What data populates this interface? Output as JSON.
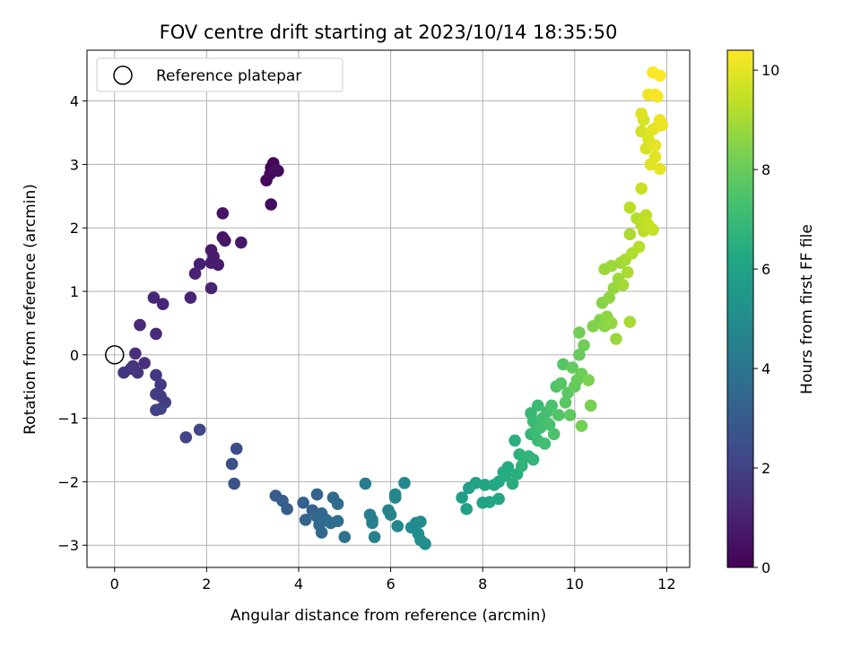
{
  "chart_data": {
    "type": "scatter",
    "title": "FOV centre drift starting at 2023/10/14 18:35:50",
    "xlabel": "Angular distance from reference (arcmin)",
    "ylabel": "Rotation from reference (arcmin)",
    "xlim": [
      -0.6,
      12.5
    ],
    "ylim": [
      -3.35,
      4.8
    ],
    "xticks": [
      0,
      2,
      4,
      6,
      8,
      10,
      12
    ],
    "yticks": [
      -3,
      -2,
      -1,
      0,
      1,
      2,
      3,
      4
    ],
    "grid": true,
    "legend": {
      "placement": "top-left",
      "label": "Reference platepar"
    },
    "reference_point": {
      "x": 0,
      "y": 0
    },
    "colorbar": {
      "label": "Hours from first FF file",
      "colormap": "viridis",
      "range": [
        0,
        10.4
      ],
      "ticks": [
        0,
        2,
        4,
        6,
        8,
        10
      ]
    },
    "points": [
      {
        "x": 3.4,
        "y": 2.95,
        "t": 0.05
      },
      {
        "x": 3.45,
        "y": 3.02,
        "t": 0.1
      },
      {
        "x": 3.55,
        "y": 2.9,
        "t": 0.15
      },
      {
        "x": 3.3,
        "y": 2.75,
        "t": 0.2
      },
      {
        "x": 3.38,
        "y": 2.85,
        "t": 0.25
      },
      {
        "x": 3.4,
        "y": 2.37,
        "t": 0.3
      },
      {
        "x": 3.5,
        "y": 2.92,
        "t": 0.35
      },
      {
        "x": 2.35,
        "y": 2.23,
        "t": 0.5
      },
      {
        "x": 2.35,
        "y": 1.85,
        "t": 0.55
      },
      {
        "x": 2.4,
        "y": 1.8,
        "t": 0.6
      },
      {
        "x": 2.75,
        "y": 1.77,
        "t": 0.65
      },
      {
        "x": 2.1,
        "y": 1.65,
        "t": 0.7
      },
      {
        "x": 2.15,
        "y": 1.55,
        "t": 0.75
      },
      {
        "x": 2.25,
        "y": 1.42,
        "t": 0.8
      },
      {
        "x": 2.1,
        "y": 1.45,
        "t": 0.85
      },
      {
        "x": 1.85,
        "y": 1.43,
        "t": 0.9
      },
      {
        "x": 1.75,
        "y": 1.28,
        "t": 0.95
      },
      {
        "x": 2.1,
        "y": 1.05,
        "t": 1.0
      },
      {
        "x": 1.65,
        "y": 0.9,
        "t": 1.05
      },
      {
        "x": 0.85,
        "y": 0.9,
        "t": 1.1
      },
      {
        "x": 1.05,
        "y": 0.8,
        "t": 1.15
      },
      {
        "x": 0.55,
        "y": 0.47,
        "t": 1.2
      },
      {
        "x": 0.9,
        "y": 0.33,
        "t": 1.25
      },
      {
        "x": 0.45,
        "y": 0.02,
        "t": 1.4
      },
      {
        "x": 0.65,
        "y": -0.13,
        "t": 1.45
      },
      {
        "x": 0.4,
        "y": -0.18,
        "t": 1.5
      },
      {
        "x": 0.5,
        "y": -0.28,
        "t": 1.55
      },
      {
        "x": 0.2,
        "y": -0.28,
        "t": 1.6
      },
      {
        "x": 0.35,
        "y": -0.22,
        "t": 1.65
      },
      {
        "x": 0.9,
        "y": -0.32,
        "t": 1.7
      },
      {
        "x": 1.0,
        "y": -0.47,
        "t": 1.75
      },
      {
        "x": 0.9,
        "y": -0.62,
        "t": 1.8
      },
      {
        "x": 1.0,
        "y": -0.65,
        "t": 1.85
      },
      {
        "x": 1.1,
        "y": -0.75,
        "t": 1.9
      },
      {
        "x": 0.9,
        "y": -0.87,
        "t": 1.95
      },
      {
        "x": 1.0,
        "y": -0.85,
        "t": 2.0
      },
      {
        "x": 1.55,
        "y": -1.3,
        "t": 2.1
      },
      {
        "x": 1.85,
        "y": -1.18,
        "t": 2.15
      },
      {
        "x": 2.65,
        "y": -1.48,
        "t": 2.4
      },
      {
        "x": 2.55,
        "y": -1.72,
        "t": 2.5
      },
      {
        "x": 2.6,
        "y": -2.03,
        "t": 2.6
      },
      {
        "x": 3.5,
        "y": -2.22,
        "t": 3.0
      },
      {
        "x": 3.65,
        "y": -2.3,
        "t": 3.05
      },
      {
        "x": 3.75,
        "y": -2.43,
        "t": 3.1
      },
      {
        "x": 4.1,
        "y": -2.33,
        "t": 3.2
      },
      {
        "x": 4.4,
        "y": -2.2,
        "t": 3.25
      },
      {
        "x": 4.3,
        "y": -2.45,
        "t": 3.3
      },
      {
        "x": 4.15,
        "y": -2.6,
        "t": 3.35
      },
      {
        "x": 4.4,
        "y": -2.55,
        "t": 3.4
      },
      {
        "x": 4.5,
        "y": -2.5,
        "t": 3.45
      },
      {
        "x": 4.45,
        "y": -2.68,
        "t": 3.5
      },
      {
        "x": 4.5,
        "y": -2.8,
        "t": 3.55
      },
      {
        "x": 4.6,
        "y": -2.6,
        "t": 3.6
      },
      {
        "x": 4.75,
        "y": -2.25,
        "t": 3.65
      },
      {
        "x": 4.85,
        "y": -2.35,
        "t": 3.7
      },
      {
        "x": 4.7,
        "y": -2.65,
        "t": 3.75
      },
      {
        "x": 4.85,
        "y": -2.62,
        "t": 3.8
      },
      {
        "x": 5.0,
        "y": -2.87,
        "t": 3.85
      },
      {
        "x": 5.45,
        "y": -2.03,
        "t": 4.3
      },
      {
        "x": 5.55,
        "y": -2.52,
        "t": 4.4
      },
      {
        "x": 5.6,
        "y": -2.6,
        "t": 4.45
      },
      {
        "x": 5.6,
        "y": -2.65,
        "t": 4.5
      },
      {
        "x": 5.65,
        "y": -2.87,
        "t": 4.55
      },
      {
        "x": 5.95,
        "y": -2.45,
        "t": 4.6
      },
      {
        "x": 6.0,
        "y": -2.52,
        "t": 4.65
      },
      {
        "x": 6.1,
        "y": -2.25,
        "t": 4.7
      },
      {
        "x": 6.1,
        "y": -2.2,
        "t": 4.75
      },
      {
        "x": 6.15,
        "y": -2.7,
        "t": 4.8
      },
      {
        "x": 6.3,
        "y": -2.02,
        "t": 4.85
      },
      {
        "x": 6.45,
        "y": -2.72,
        "t": 4.9
      },
      {
        "x": 6.55,
        "y": -2.65,
        "t": 4.95
      },
      {
        "x": 6.6,
        "y": -2.82,
        "t": 5.0
      },
      {
        "x": 6.65,
        "y": -2.63,
        "t": 5.05
      },
      {
        "x": 6.65,
        "y": -2.92,
        "t": 5.1
      },
      {
        "x": 6.75,
        "y": -2.98,
        "t": 5.15
      },
      {
        "x": 7.55,
        "y": -2.25,
        "t": 5.8
      },
      {
        "x": 7.7,
        "y": -2.1,
        "t": 5.85
      },
      {
        "x": 7.65,
        "y": -2.43,
        "t": 5.9
      },
      {
        "x": 7.85,
        "y": -2.02,
        "t": 5.95
      },
      {
        "x": 8.0,
        "y": -2.33,
        "t": 6.0
      },
      {
        "x": 8.05,
        "y": -2.05,
        "t": 6.05
      },
      {
        "x": 8.15,
        "y": -2.32,
        "t": 6.1
      },
      {
        "x": 8.25,
        "y": -2.05,
        "t": 6.15
      },
      {
        "x": 8.35,
        "y": -2.27,
        "t": 6.2
      },
      {
        "x": 8.35,
        "y": -2.0,
        "t": 6.25
      },
      {
        "x": 8.45,
        "y": -1.85,
        "t": 6.3
      },
      {
        "x": 8.55,
        "y": -1.77,
        "t": 6.35
      },
      {
        "x": 8.5,
        "y": -1.9,
        "t": 6.4
      },
      {
        "x": 8.65,
        "y": -2.03,
        "t": 6.45
      },
      {
        "x": 8.75,
        "y": -1.88,
        "t": 6.5
      },
      {
        "x": 8.7,
        "y": -1.35,
        "t": 6.55
      },
      {
        "x": 8.8,
        "y": -1.57,
        "t": 6.6
      },
      {
        "x": 8.9,
        "y": -1.63,
        "t": 6.65
      },
      {
        "x": 8.85,
        "y": -1.75,
        "t": 6.7
      },
      {
        "x": 9.0,
        "y": -1.6,
        "t": 6.75
      },
      {
        "x": 9.1,
        "y": -1.65,
        "t": 6.8
      },
      {
        "x": 9.05,
        "y": -1.25,
        "t": 6.85
      },
      {
        "x": 9.05,
        "y": -0.92,
        "t": 6.9
      },
      {
        "x": 9.1,
        "y": -1.05,
        "t": 6.95
      },
      {
        "x": 9.15,
        "y": -1.2,
        "t": 7.0
      },
      {
        "x": 9.2,
        "y": -0.8,
        "t": 7.05
      },
      {
        "x": 9.2,
        "y": -1.35,
        "t": 7.1
      },
      {
        "x": 9.25,
        "y": -1.15,
        "t": 7.15
      },
      {
        "x": 9.3,
        "y": -1.0,
        "t": 7.2
      },
      {
        "x": 9.35,
        "y": -1.4,
        "t": 7.25
      },
      {
        "x": 9.4,
        "y": -0.9,
        "t": 7.3
      },
      {
        "x": 9.45,
        "y": -1.1,
        "t": 7.35
      },
      {
        "x": 9.5,
        "y": -0.8,
        "t": 7.4
      },
      {
        "x": 9.55,
        "y": -1.25,
        "t": 7.45
      },
      {
        "x": 9.6,
        "y": -0.5,
        "t": 7.5
      },
      {
        "x": 9.65,
        "y": -0.95,
        "t": 7.55
      },
      {
        "x": 9.7,
        "y": -0.45,
        "t": 7.6
      },
      {
        "x": 9.75,
        "y": -0.15,
        "t": 7.65
      },
      {
        "x": 9.8,
        "y": -0.75,
        "t": 7.7
      },
      {
        "x": 9.85,
        "y": -0.6,
        "t": 7.75
      },
      {
        "x": 9.9,
        "y": -0.95,
        "t": 7.8
      },
      {
        "x": 9.95,
        "y": -0.2,
        "t": 7.85
      },
      {
        "x": 10.0,
        "y": -0.5,
        "t": 7.9
      },
      {
        "x": 10.05,
        "y": -0.4,
        "t": 7.95
      },
      {
        "x": 10.1,
        "y": 0.0,
        "t": 8.0
      },
      {
        "x": 10.15,
        "y": -0.3,
        "t": 8.05
      },
      {
        "x": 10.2,
        "y": 0.15,
        "t": 8.1
      },
      {
        "x": 10.1,
        "y": 0.35,
        "t": 8.15
      },
      {
        "x": 10.15,
        "y": -1.12,
        "t": 8.2
      },
      {
        "x": 10.35,
        "y": -0.8,
        "t": 8.25
      },
      {
        "x": 10.3,
        "y": -0.4,
        "t": 8.3
      },
      {
        "x": 10.4,
        "y": 0.45,
        "t": 8.4
      },
      {
        "x": 10.55,
        "y": 0.55,
        "t": 8.45
      },
      {
        "x": 10.6,
        "y": 0.82,
        "t": 8.5
      },
      {
        "x": 10.65,
        "y": 0.45,
        "t": 8.55
      },
      {
        "x": 10.7,
        "y": 0.6,
        "t": 8.6
      },
      {
        "x": 10.75,
        "y": 0.9,
        "t": 8.65
      },
      {
        "x": 10.8,
        "y": 0.5,
        "t": 8.7
      },
      {
        "x": 10.85,
        "y": 1.05,
        "t": 8.75
      },
      {
        "x": 10.9,
        "y": 0.25,
        "t": 8.8
      },
      {
        "x": 10.95,
        "y": 1.2,
        "t": 8.85
      },
      {
        "x": 11.0,
        "y": 1.45,
        "t": 8.9
      },
      {
        "x": 11.05,
        "y": 1.1,
        "t": 8.95
      },
      {
        "x": 10.65,
        "y": 1.35,
        "t": 8.8
      },
      {
        "x": 10.8,
        "y": 1.4,
        "t": 8.85
      },
      {
        "x": 11.1,
        "y": 1.5,
        "t": 9.0
      },
      {
        "x": 11.15,
        "y": 1.3,
        "t": 9.05
      },
      {
        "x": 11.2,
        "y": 0.52,
        "t": 9.0
      },
      {
        "x": 11.2,
        "y": 1.9,
        "t": 9.1
      },
      {
        "x": 11.25,
        "y": 1.6,
        "t": 9.15
      },
      {
        "x": 11.35,
        "y": 2.15,
        "t": 9.2
      },
      {
        "x": 11.4,
        "y": 1.7,
        "t": 9.25
      },
      {
        "x": 11.45,
        "y": 2.05,
        "t": 9.3
      },
      {
        "x": 11.5,
        "y": 1.95,
        "t": 9.35
      },
      {
        "x": 11.55,
        "y": 2.2,
        "t": 9.4
      },
      {
        "x": 11.6,
        "y": 2.05,
        "t": 9.45
      },
      {
        "x": 11.7,
        "y": 1.97,
        "t": 9.5
      },
      {
        "x": 11.2,
        "y": 2.32,
        "t": 9.3
      },
      {
        "x": 11.45,
        "y": 2.62,
        "t": 9.55
      },
      {
        "x": 11.45,
        "y": 3.52,
        "t": 9.7
      },
      {
        "x": 11.5,
        "y": 3.7,
        "t": 9.75
      },
      {
        "x": 11.55,
        "y": 3.25,
        "t": 9.8
      },
      {
        "x": 11.6,
        "y": 3.4,
        "t": 9.85
      },
      {
        "x": 11.65,
        "y": 3.0,
        "t": 9.9
      },
      {
        "x": 11.7,
        "y": 3.55,
        "t": 9.95
      },
      {
        "x": 11.75,
        "y": 3.3,
        "t": 10.0
      },
      {
        "x": 11.8,
        "y": 3.6,
        "t": 10.05
      },
      {
        "x": 11.85,
        "y": 3.7,
        "t": 10.1
      },
      {
        "x": 11.9,
        "y": 3.62,
        "t": 10.12
      },
      {
        "x": 11.85,
        "y": 2.93,
        "t": 10.0
      },
      {
        "x": 11.75,
        "y": 3.12,
        "t": 9.95
      },
      {
        "x": 11.45,
        "y": 3.8,
        "t": 9.9
      },
      {
        "x": 11.6,
        "y": 4.1,
        "t": 10.2
      },
      {
        "x": 11.75,
        "y": 4.1,
        "t": 10.25
      },
      {
        "x": 11.8,
        "y": 4.07,
        "t": 10.28
      },
      {
        "x": 11.7,
        "y": 4.45,
        "t": 10.35
      },
      {
        "x": 11.85,
        "y": 4.4,
        "t": 10.4
      }
    ]
  }
}
